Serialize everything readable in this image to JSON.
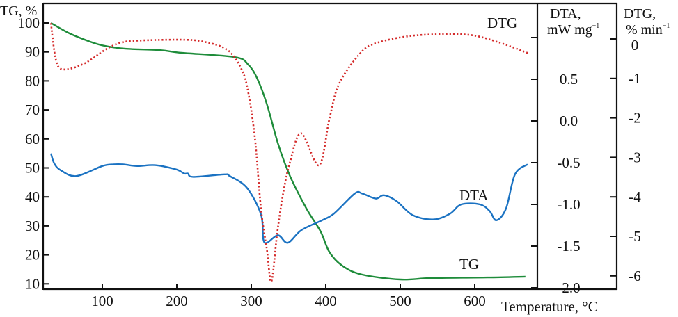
{
  "chart_data": {
    "type": "line",
    "title": "",
    "xlabel": "Temperature, °C",
    "xlim": [
      20,
      680
    ],
    "xticks": [
      100,
      200,
      300,
      400,
      500,
      600
    ],
    "axes": {
      "tg": {
        "label": "TG, %",
        "ylim": [
          10,
          100
        ],
        "ticks": [
          10,
          20,
          30,
          40,
          50,
          60,
          70,
          80,
          90,
          100
        ]
      },
      "dta": {
        "label_line1": "DTA,",
        "label_line2": "mW mg",
        "label_sup": "−1",
        "ticks": [
          1.0,
          0.5,
          0.0,
          -0.5,
          -1.0,
          -1.5,
          -2.0
        ],
        "tick_labels": [
          "",
          "0.5",
          "0.0",
          "-0.5",
          "-1.0",
          "-1.5",
          "-2.0"
        ]
      },
      "dtg": {
        "label_line1": "DTG,",
        "label_line2": "% min",
        "label_sup": "−1",
        "ticks": [
          0,
          -1,
          -2,
          -3,
          -4,
          -5,
          -6
        ]
      }
    },
    "series": [
      {
        "name": "TG",
        "axis": "tg",
        "color": "#1e8c3a",
        "style": "solid",
        "x": [
          31,
          56,
          84,
          103,
          131,
          178,
          206,
          278,
          296,
          308,
          321,
          336,
          352,
          374,
          393,
          405,
          423,
          449,
          500,
          542,
          617,
          668
        ],
        "y": [
          100,
          96.4,
          93.5,
          92.1,
          91.1,
          90.6,
          89.7,
          88.2,
          85.6,
          80.8,
          71.9,
          58.3,
          47.2,
          36.0,
          28.1,
          20.9,
          16.1,
          13.2,
          11.5,
          12.0,
          12.2,
          12.5
        ]
      },
      {
        "name": "DTA",
        "axis": "dta",
        "color": "#1a72c2",
        "style": "solid",
        "x": [
          31,
          35.5,
          44,
          65,
          100,
          115,
          128,
          147,
          171,
          199,
          210,
          215,
          222,
          264,
          271,
          294,
          313,
          316,
          321,
          336,
          349,
          367,
          395,
          411,
          439,
          449,
          467,
          478,
          495,
          517,
          545,
          567,
          582,
          607,
          620,
          629,
          642,
          654,
          671
        ],
        "y": [
          -0.39,
          -0.51,
          -0.59,
          -0.66,
          -0.54,
          -0.52,
          -0.52,
          -0.54,
          -0.53,
          -0.58,
          -0.63,
          -0.63,
          -0.67,
          -0.64,
          -0.66,
          -0.8,
          -1.12,
          -1.41,
          -1.46,
          -1.37,
          -1.46,
          -1.31,
          -1.19,
          -1.11,
          -0.87,
          -0.87,
          -0.93,
          -0.89,
          -0.96,
          -1.13,
          -1.18,
          -1.11,
          -1.0,
          -1.0,
          -1.08,
          -1.19,
          -1.05,
          -0.64,
          -0.52
        ]
      },
      {
        "name": "DTG",
        "axis": "dtg",
        "color": "#d42a2a",
        "style": "dotted",
        "x": [
          31,
          37.5,
          47,
          75,
          106,
          126,
          150,
          206,
          236,
          268,
          287,
          296,
          305,
          313,
          321,
          327,
          335,
          343,
          352,
          367,
          391,
          405,
          418,
          446,
          467,
          511,
          558,
          598,
          636,
          673
        ],
        "y": [
          0.4,
          -0.51,
          -0.77,
          -0.63,
          -0.25,
          -0.09,
          -0.04,
          -0.02,
          -0.07,
          -0.28,
          -0.77,
          -1.36,
          -2.54,
          -4.3,
          -5.35,
          -6.14,
          -4.88,
          -3.89,
          -3.12,
          -2.39,
          -3.2,
          -2.01,
          -1.13,
          -0.37,
          -0.11,
          0.07,
          0.12,
          0.09,
          -0.11,
          -0.37
        ]
      }
    ],
    "annotations": [
      "DTG",
      "DTA",
      "TG"
    ],
    "grid": false,
    "legend": "none (inline curve labels)"
  }
}
